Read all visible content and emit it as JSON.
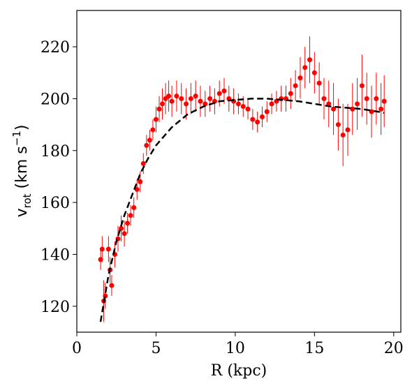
{
  "chart_data": {
    "type": "scatter",
    "xlabel": "R (kpc)",
    "ylabel": {
      "base": "v",
      "sub": "rot",
      "unit": " (km s",
      "sup": "−1",
      "close": ")"
    },
    "xlim": [
      0,
      20.45
    ],
    "ylim": [
      110,
      234
    ],
    "xticks": [
      0,
      5,
      10,
      15,
      20
    ],
    "yticks": [
      120,
      140,
      160,
      180,
      200,
      220
    ],
    "x": [
      1.5,
      1.6,
      1.7,
      1.8,
      2.0,
      2.1,
      2.2,
      2.4,
      2.6,
      2.8,
      3.0,
      3.2,
      3.4,
      3.6,
      3.8,
      4.0,
      4.2,
      4.4,
      4.6,
      4.8,
      5.0,
      5.2,
      5.4,
      5.6,
      5.8,
      6.0,
      6.3,
      6.6,
      6.9,
      7.2,
      7.5,
      7.8,
      8.1,
      8.4,
      8.7,
      9.0,
      9.3,
      9.6,
      9.9,
      10.2,
      10.5,
      10.8,
      11.1,
      11.4,
      11.7,
      12.0,
      12.3,
      12.6,
      12.9,
      13.2,
      13.5,
      13.8,
      14.1,
      14.4,
      14.7,
      15.0,
      15.3,
      15.6,
      15.9,
      16.2,
      16.5,
      16.8,
      17.1,
      17.4,
      17.7,
      18.0,
      18.3,
      18.6,
      18.9,
      19.2,
      19.4
    ],
    "series": [
      {
        "color": "#ff0000",
        "values": [
          138,
          142,
          122,
          124,
          142,
          134,
          128,
          140,
          146,
          150,
          148,
          152,
          155,
          158,
          165,
          168,
          175,
          182,
          184,
          188,
          192,
          196,
          198,
          200,
          201,
          199,
          201,
          200,
          198,
          200,
          201,
          199,
          198,
          200,
          199,
          202,
          203,
          200,
          199,
          198,
          197,
          196,
          192,
          191,
          193,
          195,
          198,
          199,
          200,
          200,
          202,
          205,
          208,
          212,
          215,
          210,
          206,
          200,
          198,
          196,
          190,
          186,
          188,
          196,
          198,
          205,
          200,
          195,
          200,
          196,
          199
        ],
        "errors": [
          4,
          5,
          8,
          5,
          5,
          5,
          4,
          5,
          5,
          5,
          5,
          4,
          4,
          4,
          4,
          4,
          4,
          4,
          4,
          4,
          5,
          5,
          6,
          6,
          6,
          6,
          6,
          6,
          6,
          6,
          6,
          6,
          5,
          5,
          5,
          5,
          5,
          5,
          5,
          4,
          4,
          4,
          4,
          4,
          4,
          4,
          4,
          4,
          5,
          5,
          6,
          6,
          8,
          8,
          9,
          8,
          8,
          8,
          9,
          10,
          10,
          12,
          10,
          10,
          10,
          12,
          10,
          10,
          10,
          10,
          10
        ]
      }
    ],
    "model": {
      "color": "#000000",
      "x": [
        1.5,
        2,
        2.5,
        3,
        3.5,
        4,
        4.5,
        5,
        6,
        7,
        8,
        9,
        10,
        11,
        12,
        13,
        14,
        15,
        16,
        17,
        18,
        19,
        19.4
      ],
      "values": [
        114,
        132,
        145,
        155,
        163,
        171,
        177,
        182,
        189,
        194,
        197,
        199,
        199.5,
        200,
        200,
        199.5,
        199,
        198,
        197,
        196.5,
        196,
        195,
        194.5
      ]
    }
  }
}
